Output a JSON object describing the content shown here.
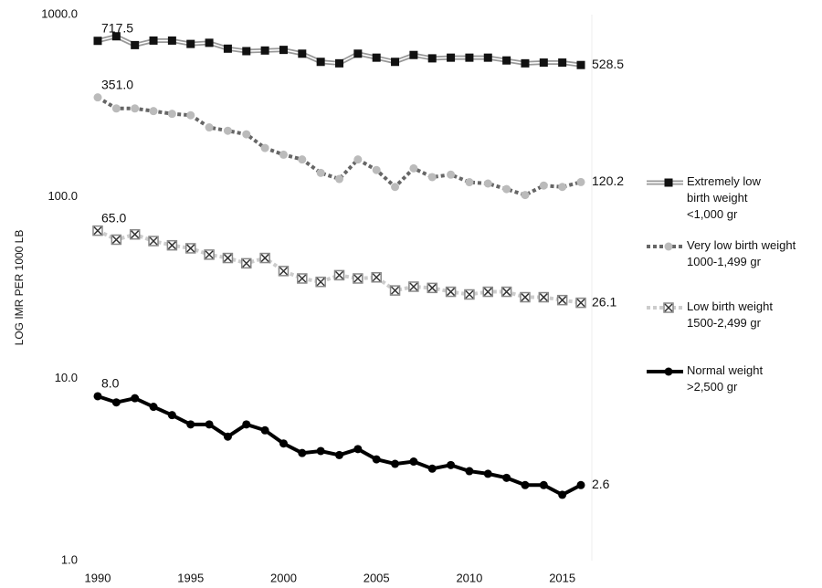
{
  "chart_data": {
    "type": "line",
    "y_label": "LOG IMR  PER 1000 LB",
    "log_y": true,
    "x": [
      1990,
      1991,
      1992,
      1993,
      1994,
      1995,
      1996,
      1997,
      1998,
      1999,
      2000,
      2001,
      2002,
      2003,
      2004,
      2005,
      2006,
      2007,
      2008,
      2009,
      2010,
      2011,
      2012,
      2013,
      2014,
      2015,
      2016
    ],
    "xlim": [
      1990,
      2016
    ],
    "xticks": [
      1990,
      1995,
      2000,
      2005,
      2010,
      2015
    ],
    "ylim": [
      1,
      1000
    ],
    "yticks": [
      {
        "value": 1,
        "label": "1.0"
      },
      {
        "value": 10,
        "label": "10.0"
      },
      {
        "value": 100,
        "label": "100.0"
      },
      {
        "value": 1000,
        "label": "1000.0"
      }
    ],
    "series": [
      {
        "name": "Extremely low\nbirth weight\n<1,000 gr",
        "color": "#999999",
        "marker": "square",
        "marker_color": "#111111",
        "style": "double",
        "values": [
          717.5,
          760,
          680,
          720,
          720,
          690,
          700,
          650,
          630,
          635,
          640,
          610,
          550,
          540,
          610,
          580,
          550,
          600,
          575,
          580,
          580,
          580,
          560,
          540,
          545,
          545,
          528.5
        ],
        "value_labels": [
          "717.5",
          null,
          null,
          null,
          null,
          null,
          null,
          null,
          null,
          null,
          null,
          null,
          null,
          null,
          null,
          null,
          null,
          null,
          null,
          null,
          null,
          null,
          null,
          null,
          null,
          null,
          "528.5"
        ]
      },
      {
        "name": "Very low birth weight\n1000-1,499 gr",
        "color": "#666666",
        "marker": "circle",
        "marker_color": "#bbbbbb",
        "style": "dotted",
        "values": [
          351.0,
          305,
          305,
          295,
          285,
          280,
          240,
          230,
          220,
          185,
          170,
          160,
          135,
          125,
          160,
          140,
          113,
          143,
          128,
          132,
          120,
          118,
          110,
          102,
          115,
          113,
          120.2
        ],
        "value_labels": [
          "351.0",
          null,
          null,
          null,
          null,
          null,
          null,
          null,
          null,
          null,
          null,
          null,
          null,
          null,
          null,
          null,
          null,
          null,
          null,
          null,
          null,
          null,
          null,
          null,
          null,
          null,
          "120.2"
        ]
      },
      {
        "name": "Low birth weight\n 1500-2,499 gr",
        "color": "#cccccc",
        "marker": "xbox",
        "marker_color": "#888888",
        "style": "dotted",
        "values": [
          65.0,
          58,
          62,
          57,
          54,
          52,
          48,
          46,
          43,
          46,
          39,
          35.5,
          34,
          37,
          35.5,
          36,
          30.5,
          32,
          31.5,
          30,
          29,
          30,
          30,
          28,
          28,
          27,
          26.1
        ],
        "value_labels": [
          "65.0",
          null,
          null,
          null,
          null,
          null,
          null,
          null,
          null,
          null,
          null,
          null,
          null,
          null,
          null,
          null,
          null,
          null,
          null,
          null,
          null,
          null,
          null,
          null,
          null,
          null,
          "26.1"
        ]
      },
      {
        "name": "Normal weight\n>2,500 gr",
        "color": "#000000",
        "marker": "circle",
        "marker_color": "#000000",
        "style": "thick",
        "values": [
          8.0,
          7.4,
          7.8,
          7.0,
          6.3,
          5.6,
          5.6,
          4.8,
          5.6,
          5.2,
          4.4,
          3.9,
          4.0,
          3.8,
          4.1,
          3.6,
          3.4,
          3.5,
          3.2,
          3.35,
          3.1,
          3.0,
          2.85,
          2.6,
          2.6,
          2.3,
          2.6
        ],
        "value_labels": [
          "8.0",
          null,
          null,
          null,
          null,
          null,
          null,
          null,
          null,
          null,
          null,
          null,
          null,
          null,
          null,
          null,
          null,
          null,
          null,
          null,
          null,
          null,
          null,
          null,
          null,
          null,
          "2.6"
        ]
      }
    ]
  }
}
